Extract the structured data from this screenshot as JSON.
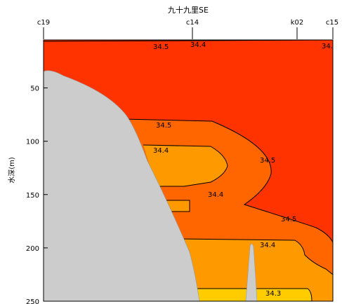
{
  "chart_data": {
    "type": "contour",
    "title": "九十九里SE",
    "ylabel": "水深(m)",
    "y_ticks": [
      50,
      100,
      150,
      200,
      250
    ],
    "ylim": [
      5,
      250
    ],
    "stations": [
      "c19",
      "c14",
      "k02",
      "c15"
    ],
    "contour_labels": [
      "34.5",
      "34.4",
      "34.5",
      "34.4",
      "34.5",
      "34.4",
      "34.5",
      "34.4",
      "34.3",
      "34."
    ],
    "legend": "none",
    "grid": false,
    "colors": {
      "above_34_5": "#ff3300",
      "34_4_to_34_5": "#ff6600",
      "34_3_to_34_4": "#ff9900",
      "below_34_3": "#ffcc00",
      "seafloor": "#cccccc",
      "contour_line": "#000000"
    }
  }
}
